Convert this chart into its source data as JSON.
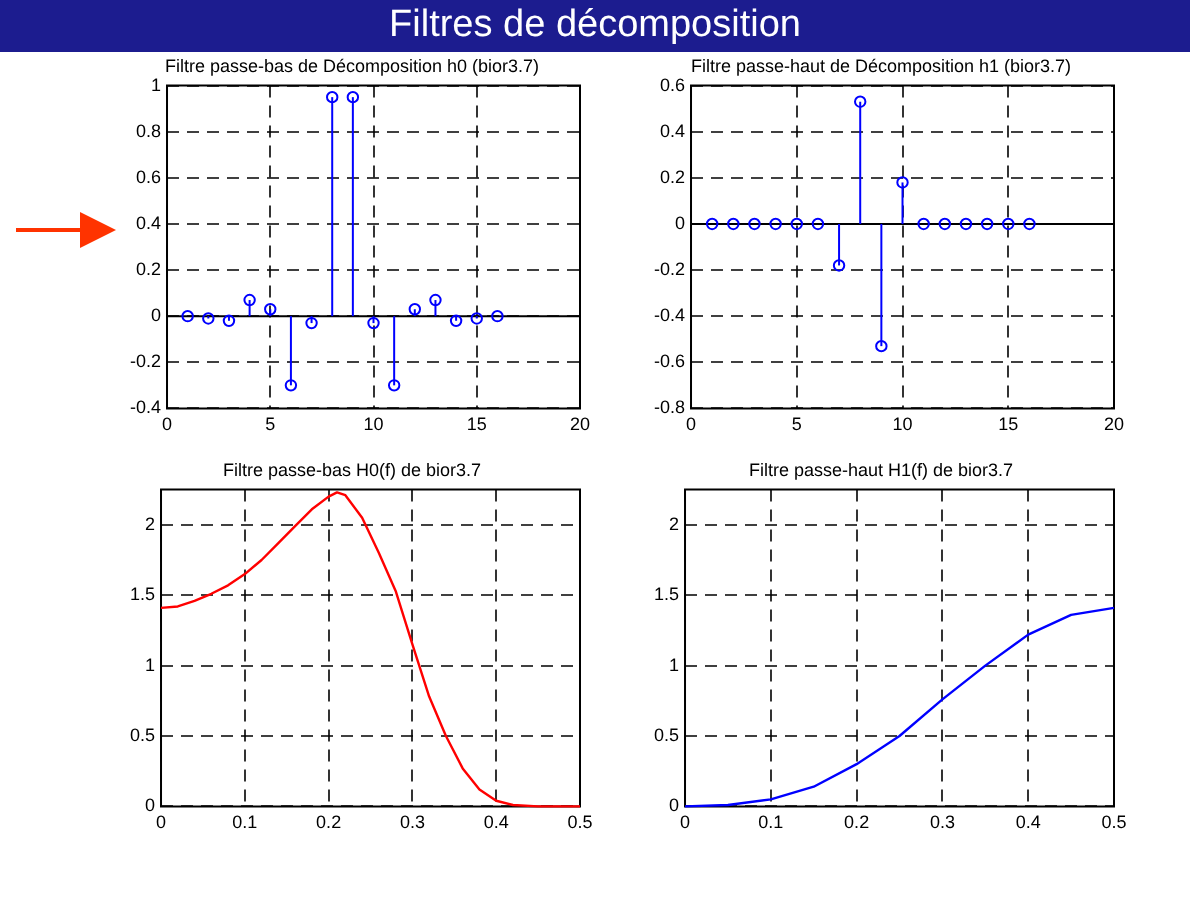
{
  "chart_data": [
    {
      "type": "other",
      "title": "Filtres de décomposition"
    },
    {
      "type": "lollipop",
      "title": "Filtre passe-bas de Décomposition h0 (bior3.7)",
      "x": [
        1,
        2,
        3,
        4,
        5,
        6,
        7,
        8,
        9,
        10,
        11,
        12,
        13,
        14,
        15,
        16
      ],
      "values": [
        0.0,
        -0.01,
        -0.02,
        0.07,
        0.03,
        -0.3,
        -0.03,
        0.95,
        0.95,
        -0.03,
        -0.3,
        0.03,
        0.07,
        -0.02,
        -0.01,
        0.0
      ],
      "color": "#0000ff",
      "marker": "circle",
      "xlim": [
        0,
        20
      ],
      "xticks": [
        0,
        5,
        10,
        15,
        20
      ],
      "ylim": [
        -0.4,
        1
      ],
      "yticks": [
        -0.4,
        -0.2,
        0,
        0.2,
        0.4,
        0.6,
        0.8,
        1
      ],
      "grid": true
    },
    {
      "type": "lollipop",
      "title": "Filtre passe-haut de Décomposition h1 (bior3.7)",
      "x": [
        1,
        2,
        3,
        4,
        5,
        6,
        7,
        8,
        9,
        10,
        11,
        12,
        13,
        14,
        15,
        16
      ],
      "values": [
        0,
        0,
        0,
        0,
        0,
        0,
        -0.18,
        0.53,
        -0.53,
        0.18,
        0,
        0,
        0,
        0,
        0,
        0
      ],
      "color": "#0000ff",
      "marker": "circle",
      "xlim": [
        0,
        20
      ],
      "xticks": [
        0,
        5,
        10,
        15,
        20
      ],
      "ylim": [
        -0.8,
        0.6
      ],
      "yticks": [
        -0.8,
        -0.6,
        -0.4,
        -0.2,
        0,
        0.2,
        0.4,
        0.6
      ],
      "grid": true
    },
    {
      "type": "line",
      "title": "Filtre passe-bas H0(f) de bior3.7",
      "x": [
        0,
        0.02,
        0.04,
        0.06,
        0.08,
        0.1,
        0.12,
        0.14,
        0.16,
        0.18,
        0.2,
        0.21,
        0.22,
        0.24,
        0.26,
        0.28,
        0.3,
        0.32,
        0.34,
        0.36,
        0.38,
        0.4,
        0.42,
        0.45,
        0.5
      ],
      "values": [
        1.41,
        1.42,
        1.46,
        1.51,
        1.57,
        1.65,
        1.75,
        1.87,
        1.99,
        2.11,
        2.2,
        2.23,
        2.21,
        2.05,
        1.8,
        1.53,
        1.15,
        0.78,
        0.5,
        0.27,
        0.12,
        0.04,
        0.01,
        0,
        0
      ],
      "color": "#ff0000",
      "xlim": [
        0,
        0.5
      ],
      "xticks": [
        0,
        0.1,
        0.2,
        0.3,
        0.4,
        0.5
      ],
      "ylim": [
        0,
        2.25
      ],
      "yticks": [
        0,
        0.5,
        1,
        1.5,
        2
      ],
      "grid": true
    },
    {
      "type": "line",
      "title": "Filtre passe-haut H1(f) de bior3.7",
      "x": [
        0,
        0.05,
        0.1,
        0.15,
        0.2,
        0.25,
        0.3,
        0.35,
        0.4,
        0.45,
        0.5
      ],
      "values": [
        0,
        0.01,
        0.05,
        0.14,
        0.3,
        0.5,
        0.76,
        1.0,
        1.22,
        1.36,
        1.41
      ],
      "color": "#0000ff",
      "xlim": [
        0,
        0.5
      ],
      "xticks": [
        0,
        0.1,
        0.2,
        0.3,
        0.4,
        0.5
      ],
      "ylim": [
        0,
        2.25
      ],
      "yticks": [
        0,
        0.5,
        1,
        1.5,
        2
      ],
      "grid": true
    }
  ]
}
